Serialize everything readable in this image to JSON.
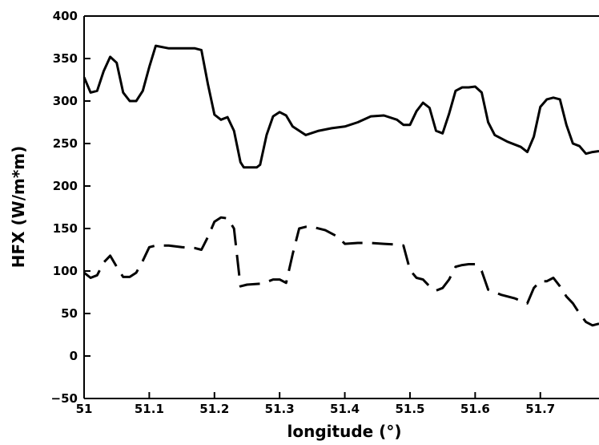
{
  "chart_data": {
    "type": "line",
    "title": "",
    "xlabel": "longitude (°)",
    "ylabel": "HFX (W/m*m)",
    "xlim": [
      51.0,
      51.79
    ],
    "ylim": [
      -50,
      400
    ],
    "xticks": [
      51,
      51.1,
      51.2,
      51.3,
      51.4,
      51.5,
      51.6,
      51.7
    ],
    "xtick_labels": [
      "51",
      "51.1",
      "51.2",
      "51.3",
      "51.4",
      "51.5",
      "51.6",
      "51.7"
    ],
    "yticks": [
      -50,
      0,
      50,
      100,
      150,
      200,
      250,
      300,
      350,
      400
    ],
    "ytick_labels": [
      "−50",
      "0",
      "50",
      "100",
      "150",
      "200",
      "250",
      "300",
      "350",
      "400"
    ],
    "grid": false,
    "legend": "none",
    "series": [
      {
        "style": "solid",
        "color": "#000000",
        "x": [
          51.0,
          51.01,
          51.02,
          51.03,
          51.04,
          51.05,
          51.06,
          51.07,
          51.08,
          51.09,
          51.1,
          51.11,
          51.13,
          51.15,
          51.17,
          51.18,
          51.19,
          51.2,
          51.21,
          51.22,
          51.23,
          51.24,
          51.245,
          51.255,
          51.265,
          51.27,
          51.28,
          51.29,
          51.3,
          51.31,
          51.32,
          51.34,
          51.36,
          51.38,
          51.4,
          51.42,
          51.44,
          51.46,
          51.48,
          51.49,
          51.5,
          51.51,
          51.52,
          51.53,
          51.54,
          51.55,
          51.56,
          51.57,
          51.58,
          51.59,
          51.6,
          51.61,
          51.62,
          51.63,
          51.65,
          51.67,
          51.68,
          51.69,
          51.7,
          51.71,
          51.72,
          51.73,
          51.74,
          51.75,
          51.76,
          51.77,
          51.78,
          51.79
        ],
        "y": [
          328,
          310,
          312,
          335,
          352,
          345,
          310,
          300,
          300,
          312,
          340,
          365,
          362,
          362,
          362,
          360,
          320,
          284,
          278,
          281,
          265,
          228,
          222,
          222,
          222,
          225,
          260,
          282,
          287,
          283,
          270,
          260,
          265,
          268,
          270,
          275,
          282,
          283,
          278,
          272,
          272,
          288,
          298,
          292,
          265,
          262,
          285,
          312,
          316,
          316,
          317,
          310,
          275,
          260,
          252,
          246,
          240,
          258,
          293,
          302,
          304,
          302,
          272,
          250,
          247,
          238,
          240,
          241
        ]
      },
      {
        "style": "dashed",
        "color": "#000000",
        "x": [
          51.0,
          51.01,
          51.02,
          51.03,
          51.04,
          51.05,
          51.06,
          51.07,
          51.08,
          51.09,
          51.1,
          51.11,
          51.13,
          51.15,
          51.17,
          51.18,
          51.19,
          51.2,
          51.21,
          51.22,
          51.23,
          51.24,
          51.25,
          51.27,
          51.28,
          51.29,
          51.3,
          51.31,
          51.32,
          51.33,
          51.34,
          51.35,
          51.37,
          51.39,
          51.4,
          51.42,
          51.44,
          51.46,
          51.48,
          51.49,
          51.5,
          51.51,
          51.52,
          51.53,
          51.54,
          51.55,
          51.56,
          51.57,
          51.58,
          51.59,
          51.6,
          51.61,
          51.62,
          51.64,
          51.66,
          51.67,
          51.68,
          51.69,
          51.7,
          51.71,
          51.72,
          51.73,
          51.74,
          51.75,
          51.76,
          51.77,
          51.78,
          51.79
        ],
        "y": [
          98,
          92,
          95,
          110,
          118,
          105,
          93,
          93,
          98,
          112,
          128,
          130,
          130,
          128,
          127,
          125,
          140,
          158,
          163,
          162,
          150,
          82,
          84,
          85,
          87,
          90,
          90,
          86,
          120,
          150,
          152,
          152,
          148,
          140,
          132,
          133,
          133,
          132,
          131,
          130,
          101,
          92,
          90,
          82,
          77,
          80,
          90,
          105,
          107,
          108,
          108,
          100,
          78,
          72,
          68,
          65,
          62,
          80,
          88,
          88,
          92,
          82,
          70,
          62,
          50,
          40,
          36,
          38
        ]
      }
    ]
  }
}
